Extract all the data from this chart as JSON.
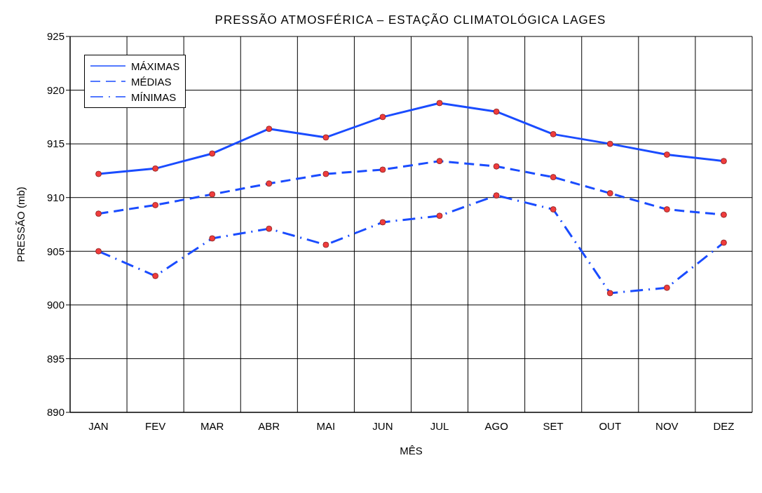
{
  "chart_data": {
    "type": "line",
    "title": "PRESSÃO ATMOSFÉRICA – ESTAÇÃO CLIMATOLÓGICA LAGES",
    "xlabel": "MÊS",
    "ylabel": "PRESSÃO (mb)",
    "categories": [
      "JAN",
      "FEV",
      "MAR",
      "ABR",
      "MAI",
      "JUN",
      "JUL",
      "AGO",
      "SET",
      "OUT",
      "NOV",
      "DEZ"
    ],
    "series": [
      {
        "name": "MÁXIMAS",
        "color": "#1a4cff",
        "line_style": "solid",
        "values": [
          912.2,
          912.7,
          914.1,
          916.4,
          915.6,
          917.5,
          918.8,
          918.0,
          915.9,
          915.0,
          914.0,
          913.4
        ]
      },
      {
        "name": "MÉDIAS",
        "color": "#1a4cff",
        "line_style": "dashed",
        "values": [
          908.5,
          909.3,
          910.3,
          911.3,
          912.2,
          912.6,
          913.4,
          912.9,
          911.9,
          910.4,
          908.9,
          908.4
        ]
      },
      {
        "name": "MÍNIMAS",
        "color": "#1a4cff",
        "line_style": "dashdot",
        "values": [
          905.0,
          902.7,
          906.2,
          907.1,
          905.6,
          907.7,
          908.3,
          910.2,
          908.9,
          901.1,
          901.6,
          905.8
        ]
      }
    ],
    "marker": "circle",
    "ylim": [
      890,
      925
    ],
    "yticks": [
      890,
      895,
      900,
      905,
      910,
      915,
      920,
      925
    ],
    "grid": true,
    "legend": "top left"
  }
}
